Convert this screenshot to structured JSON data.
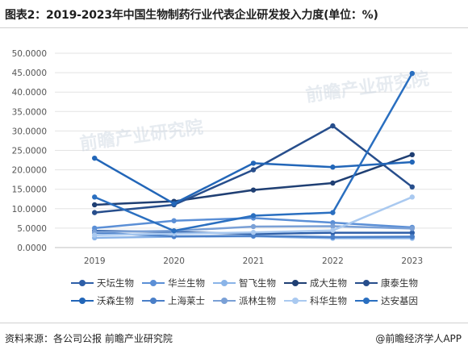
{
  "title": "图表2：2019-2023年中国生物制药行业代表企业研发投入力度(单位：%)",
  "source": "资料来源：各公司公报 前瞻产业研究院",
  "brand": "@前瞻经济学人APP",
  "watermark": "前瞻产业研究院",
  "chart_data": {
    "type": "line",
    "categories": [
      "2019",
      "2020",
      "2021",
      "2022",
      "2023"
    ],
    "ylim": [
      0,
      50
    ],
    "yticks": [
      "0.0000",
      "5.0000",
      "10.0000",
      "15.0000",
      "20.0000",
      "25.0000",
      "30.0000",
      "35.0000",
      "40.0000",
      "45.0000",
      "50.0000"
    ],
    "grid": true,
    "legend_position": "bottom",
    "series": [
      {
        "name": "天坛生物",
        "color": "#2e5fa8",
        "values": [
          4.3,
          4.0,
          3.5,
          3.8,
          3.8
        ]
      },
      {
        "name": "华兰生物",
        "color": "#5b8fd6",
        "values": [
          5.0,
          6.9,
          7.6,
          6.4,
          5.2
        ]
      },
      {
        "name": "智飞生物",
        "color": "#8ab4e8",
        "values": [
          2.5,
          2.8,
          2.9,
          2.4,
          2.4
        ]
      },
      {
        "name": "成大生物",
        "color": "#1f3f73",
        "values": [
          11.0,
          11.9,
          14.8,
          16.6,
          23.9
        ]
      },
      {
        "name": "康泰生物",
        "color": "#274e8c",
        "values": [
          9.0,
          11.0,
          20.0,
          31.3,
          15.6
        ]
      },
      {
        "name": "沃森生物",
        "color": "#2266b8",
        "values": [
          23.0,
          11.3,
          21.7,
          20.7,
          22.0
        ]
      },
      {
        "name": "上海莱士",
        "color": "#4a7fc8",
        "values": [
          3.8,
          2.9,
          3.0,
          2.7,
          2.8
        ]
      },
      {
        "name": "派林生物",
        "color": "#7aa0d6",
        "values": [
          4.0,
          4.3,
          5.4,
          5.5,
          4.9
        ]
      },
      {
        "name": "科华生物",
        "color": "#a9c9f0",
        "values": [
          3.2,
          3.6,
          3.9,
          4.4,
          13.0
        ]
      },
      {
        "name": "达安基因",
        "color": "#2a6fc0",
        "values": [
          13.0,
          4.3,
          8.2,
          9.0,
          44.8
        ]
      }
    ]
  }
}
